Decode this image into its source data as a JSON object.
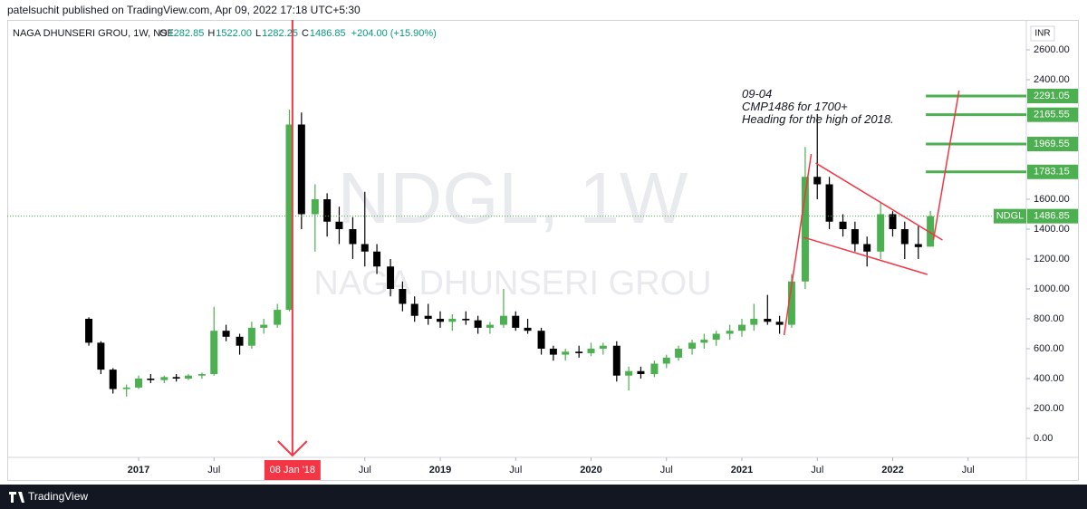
{
  "header": {
    "published": "patelsuchit published on TradingView.com, Apr 09, 2022 17:18 UTC+5:30"
  },
  "chart_data": {
    "type": "candlestick",
    "title": "NAGA DHUNSERI GROU, 1W, NSE",
    "ohlc": [
      {
        "label": "O",
        "value": "1282.85"
      },
      {
        "label": "H",
        "value": "1522.00"
      },
      {
        "label": "L",
        "value": "1282.25"
      },
      {
        "label": "C",
        "value": "1486.85"
      }
    ],
    "change": "+204.00 (+15.90%)",
    "currency": "INR",
    "ticker": "NDGL",
    "watermark": [
      "NDGL, 1W",
      "NAGA DHUNSERI GROU"
    ],
    "up_color": "#4caf50",
    "down_color": "#000000",
    "x": [
      2016.67,
      2016.75,
      2016.83,
      2016.92,
      2017.0,
      2017.08,
      2017.17,
      2017.25,
      2017.33,
      2017.42,
      2017.5,
      2017.58,
      2017.67,
      2017.75,
      2017.83,
      2017.92,
      2018.0,
      2018.08,
      2018.17,
      2018.25,
      2018.33,
      2018.42,
      2018.5,
      2018.58,
      2018.67,
      2018.75,
      2018.83,
      2018.92,
      2019.0,
      2019.08,
      2019.17,
      2019.25,
      2019.33,
      2019.42,
      2019.5,
      2019.58,
      2019.67,
      2019.75,
      2019.83,
      2019.92,
      2020.0,
      2020.08,
      2020.17,
      2020.25,
      2020.33,
      2020.42,
      2020.5,
      2020.58,
      2020.67,
      2020.75,
      2020.83,
      2020.92,
      2021.0,
      2021.08,
      2021.17,
      2021.25,
      2021.33,
      2021.42,
      2021.5,
      2021.58,
      2021.67,
      2021.75,
      2021.83,
      2021.92,
      2022.0,
      2022.08,
      2022.17,
      2022.25
    ],
    "open": [
      800,
      640,
      460,
      330,
      340,
      400,
      390,
      410,
      400,
      420,
      430,
      720,
      680,
      620,
      740,
      760,
      860,
      2100,
      1500,
      1600,
      1450,
      1400,
      1300,
      1250,
      1150,
      1000,
      900,
      820,
      800,
      780,
      800,
      790,
      740,
      760,
      820,
      740,
      720,
      600,
      560,
      580,
      570,
      600,
      620,
      420,
      450,
      430,
      500,
      540,
      600,
      640,
      660,
      700,
      720,
      760,
      800,
      780,
      760,
      1050,
      1750,
      1700,
      1450,
      1400,
      1300,
      1250,
      1500,
      1400,
      1300,
      1282.85
    ],
    "high": [
      810,
      650,
      470,
      360,
      420,
      430,
      420,
      430,
      430,
      440,
      880,
      760,
      700,
      780,
      800,
      900,
      2200,
      2180,
      1700,
      1640,
      1550,
      1480,
      1650,
      1300,
      1200,
      1050,
      950,
      900,
      850,
      830,
      850,
      820,
      780,
      1000,
      850,
      800,
      740,
      620,
      600,
      620,
      640,
      640,
      650,
      480,
      480,
      520,
      560,
      620,
      660,
      700,
      720,
      760,
      800,
      900,
      960,
      820,
      1100,
      1950,
      2170,
      1750,
      1500,
      1450,
      1350,
      1580,
      1520,
      1450,
      1420,
      1522
    ],
    "low": [
      620,
      430,
      300,
      280,
      330,
      370,
      370,
      380,
      390,
      400,
      420,
      650,
      560,
      600,
      700,
      740,
      850,
      1400,
      1250,
      1350,
      1300,
      1200,
      1150,
      1100,
      950,
      850,
      780,
      760,
      740,
      720,
      760,
      700,
      700,
      740,
      720,
      700,
      560,
      520,
      520,
      540,
      550,
      560,
      380,
      320,
      400,
      410,
      470,
      520,
      560,
      600,
      620,
      660,
      680,
      720,
      760,
      700,
      740,
      1000,
      1600,
      1400,
      1350,
      1250,
      1150,
      1200,
      1350,
      1200,
      1200,
      1282.25
    ],
    "close": [
      640,
      460,
      330,
      340,
      400,
      390,
      410,
      400,
      420,
      430,
      720,
      680,
      620,
      740,
      760,
      860,
      2100,
      1500,
      1600,
      1450,
      1400,
      1300,
      1250,
      1150,
      1000,
      900,
      820,
      800,
      780,
      800,
      790,
      740,
      760,
      820,
      740,
      720,
      600,
      560,
      580,
      570,
      600,
      620,
      420,
      450,
      430,
      500,
      540,
      600,
      640,
      660,
      700,
      720,
      760,
      800,
      780,
      760,
      1050,
      1750,
      1700,
      1450,
      1400,
      1300,
      1250,
      1500,
      1400,
      1300,
      1280,
      1486.85
    ],
    "xlim": [
      2016.129,
      2022.886
    ],
    "ylim": [
      -127.27,
      2800
    ],
    "xticks": [
      {
        "value": 2017,
        "label": "2017"
      },
      {
        "value": 2017.5,
        "label": "Jul"
      },
      {
        "value": 2018.5,
        "label": "Jul"
      },
      {
        "value": 2019,
        "label": "2019"
      },
      {
        "value": 2019.5,
        "label": "Jul"
      },
      {
        "value": 2020,
        "label": "2020"
      },
      {
        "value": 2020.5,
        "label": "Jul"
      },
      {
        "value": 2021,
        "label": "2021"
      },
      {
        "value": 2021.5,
        "label": "Jul"
      },
      {
        "value": 2022,
        "label": "2022"
      },
      {
        "value": 2022.5,
        "label": "Jul"
      }
    ],
    "yticks": [
      {
        "value": 0,
        "label": "0.00"
      },
      {
        "value": 200,
        "label": "200.00"
      },
      {
        "value": 400,
        "label": "400.00"
      },
      {
        "value": 600,
        "label": "600.00"
      },
      {
        "value": 800,
        "label": "800.00"
      },
      {
        "value": 1000,
        "label": "1000.00"
      },
      {
        "value": 1200,
        "label": "1200.00"
      },
      {
        "value": 1400,
        "label": "1400.00"
      },
      {
        "value": 1600,
        "label": "1600.00"
      },
      {
        "value": 2400,
        "label": "2400.00"
      },
      {
        "value": 2600,
        "label": "2600.00"
      }
    ],
    "levels": [
      {
        "value": 2291.05,
        "x": 2022.22
      },
      {
        "value": 2165.55,
        "x": 2022.22
      },
      {
        "value": 1969.55,
        "x": 2022.22
      },
      {
        "value": 1783.15,
        "x": 2022.22
      }
    ],
    "trendlines": [
      {
        "x": [
          2021.28,
          2021.46
        ],
        "y": [
          691,
          1903
        ]
      },
      {
        "x": [
          2021.49,
          2022.33
        ],
        "y": [
          1842,
          1327
        ]
      },
      {
        "x": [
          2021.41,
          2022.23
        ],
        "y": [
          1345,
          1097
        ]
      },
      {
        "x": [
          2022.27,
          2022.44
        ],
        "y": [
          1327,
          2327
        ]
      }
    ],
    "trend_color": "#f23645",
    "crosshair": {
      "x": 2018.02,
      "label": "08 Jan '18"
    },
    "annotation": {
      "x": 2021.0,
      "y": 2300,
      "lines": [
        "09-04",
        "CMP1486 for 1700+",
        "Heading for the high of 2018."
      ]
    }
  },
  "footer": {
    "brand": "TradingView"
  }
}
